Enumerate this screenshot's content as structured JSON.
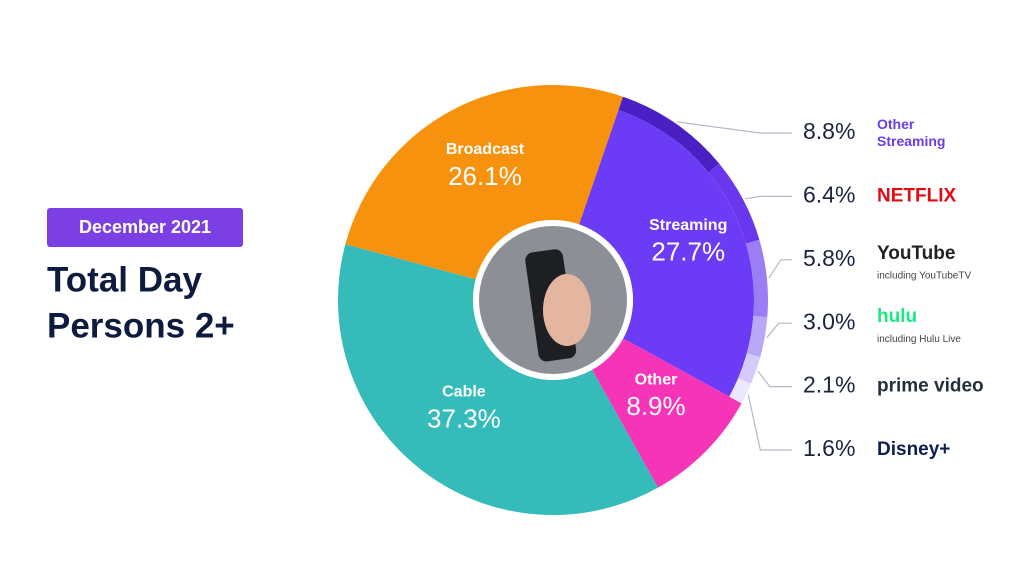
{
  "chart_data": {
    "type": "pie",
    "badge": "December 2021",
    "title": [
      "Total Day",
      "Persons 2+"
    ],
    "categories": [
      "Streaming",
      "Other",
      "Cable",
      "Broadcast"
    ],
    "values": [
      27.7,
      8.9,
      37.3,
      26.1
    ],
    "value_labels": [
      "27.7%",
      "8.9%",
      "37.3%",
      "26.1%"
    ],
    "colors": [
      "#6c3bf5",
      "#f534b8",
      "#35bbb9",
      "#f7920f"
    ],
    "breakdown": {
      "categories": [
        "Other Streaming",
        "NETFLIX",
        "YouTube",
        "hulu",
        "prime video",
        "Disney+"
      ],
      "sublabels": [
        null,
        null,
        "including YouTubeTV",
        "including Hulu Live",
        null,
        null
      ],
      "values": [
        8.8,
        6.4,
        5.8,
        3.0,
        2.1,
        1.6
      ],
      "value_labels": [
        "8.8%",
        "6.4%",
        "5.8%",
        "3.0%",
        "2.1%",
        "1.6%"
      ],
      "colors": [
        "#4a1fc4",
        "#6a36ee",
        "#9b7ef6",
        "#b9a7f8",
        "#d5cbfb",
        "#ece7fe"
      ],
      "label_colors": [
        "#6a3de8",
        "#e50914",
        "#222222",
        "#1ce783",
        "#232f3e",
        "#0d1f4f"
      ]
    }
  }
}
